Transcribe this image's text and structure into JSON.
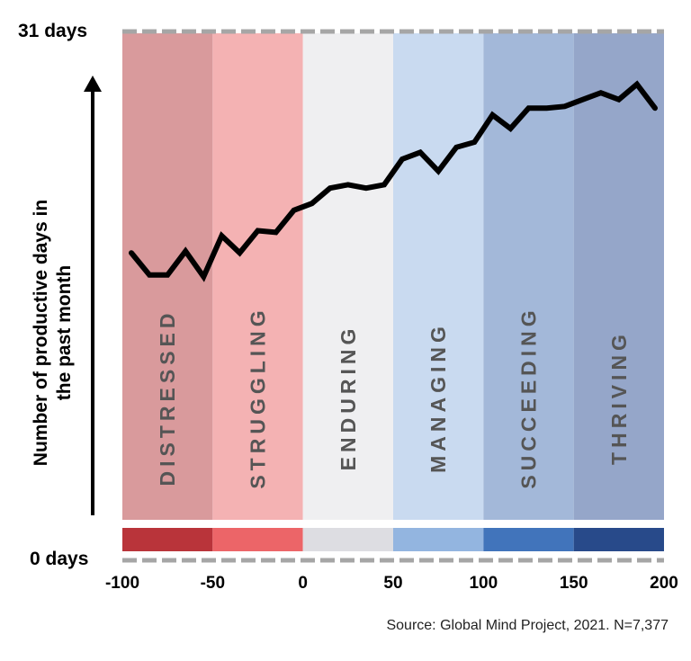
{
  "chart_data": {
    "type": "line",
    "title": "",
    "ylabel": [
      "Number of productive days in",
      "the past month"
    ],
    "xlabel": "",
    "xlim": [
      -100,
      200
    ],
    "ylim": [
      0,
      31
    ],
    "y_tick_labels": [
      "31 days",
      "0 days"
    ],
    "x_ticks": [
      -100,
      -50,
      0,
      50,
      100,
      150,
      200
    ],
    "x_tick_labels": [
      "-100",
      "-50",
      "0",
      "50",
      "100",
      "150",
      "200"
    ],
    "grid": false,
    "bands": [
      {
        "label": "DISTRESSED",
        "range": [
          -100,
          -50
        ],
        "bg": "#d99a9c",
        "bar": "#b9343a"
      },
      {
        "label": "STRUGGLING",
        "range": [
          -50,
          0
        ],
        "bg": "#f4b2b3",
        "bar": "#ec6568"
      },
      {
        "label": "ENDURING",
        "range": [
          0,
          50
        ],
        "bg": "#efeff1",
        "bar": "#dddde2"
      },
      {
        "label": "MANAGING",
        "range": [
          50,
          100
        ],
        "bg": "#c9daf0",
        "bar": "#93b5e0"
      },
      {
        "label": "SUCCEEDING",
        "range": [
          100,
          150
        ],
        "bg": "#a3b8d9",
        "bar": "#4174bb"
      },
      {
        "label": "THRIVING",
        "range": [
          150,
          200
        ],
        "bg": "#95a6c9",
        "bar": "#284a8a"
      }
    ],
    "series": [
      {
        "color": "#000000",
        "x": [
          -95,
          -85,
          -75,
          -65,
          -55,
          -45,
          -35,
          -25,
          -15,
          -5,
          5,
          15,
          25,
          35,
          45,
          55,
          65,
          75,
          85,
          95,
          105,
          115,
          125,
          135,
          145,
          155,
          165,
          175,
          185,
          195
        ],
        "y": [
          18.0,
          16.7,
          16.7,
          18.1,
          16.6,
          19.0,
          18.0,
          19.3,
          19.2,
          20.5,
          20.9,
          21.8,
          22.0,
          21.8,
          22.0,
          23.5,
          23.9,
          22.8,
          24.2,
          24.5,
          26.1,
          25.3,
          26.5,
          26.5,
          26.6,
          27.0,
          27.4,
          27.0,
          27.9,
          26.5
        ]
      }
    ],
    "source": "Source: Global Mind Project, 2021. N=7,377",
    "dashed_line_color": "#a6a6a6"
  }
}
